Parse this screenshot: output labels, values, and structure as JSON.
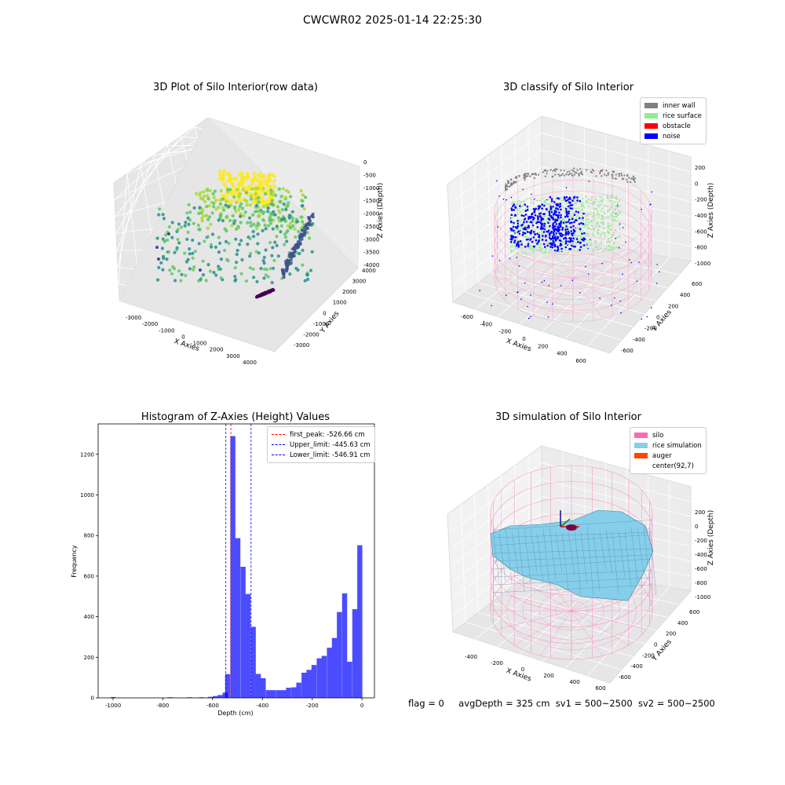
{
  "figure": {
    "suptitle": "CWCWR02 2025-01-14 22:25:30",
    "status": {
      "flag": "flag = 0",
      "avg_depth": "avgDepth = 325 cm",
      "sv1": "sv1 = 500~2500",
      "sv2": "sv2 = 500~2500"
    }
  },
  "chart_data": [
    {
      "type": "scatter",
      "title": "3D Plot of Silo Interior(row data)",
      "xlabel": "X Axies",
      "ylabel": "Y Axies",
      "zlabel": "Z Axies (Depth)",
      "x_ticks": [
        "-3000",
        "-2000",
        "-1000",
        "0",
        "1000",
        "2000",
        "3000",
        "4000"
      ],
      "y_ticks": [
        "-3000",
        "-2000",
        "-1000",
        "0",
        "1000",
        "2000",
        "3000",
        "4000"
      ],
      "z_ticks": [
        "-4000",
        "-3500",
        "-3000",
        "-2500",
        "-2000",
        "-1500",
        "-1000",
        "-500",
        "0"
      ],
      "colormap": [
        "#440154",
        "#3b528b",
        "#21908d",
        "#5dc863",
        "#fde725"
      ]
    },
    {
      "type": "scatter",
      "title": "3D classify of Silo Interior",
      "xlabel": "X Axies",
      "ylabel": "Y Axies",
      "zlabel": "Z Axies (Depth)",
      "x_ticks": [
        "-600",
        "-400",
        "-200",
        "0",
        "200",
        "400",
        "600"
      ],
      "y_ticks": [
        "-600",
        "-400",
        "-200",
        "0",
        "200",
        "400",
        "600"
      ],
      "z_ticks": [
        "-1000",
        "-800",
        "-600",
        "-400",
        "-200",
        "0",
        "200"
      ],
      "legend": [
        {
          "label": "inner wall",
          "color": "#808080"
        },
        {
          "label": "rice surface",
          "color": "#90ee90"
        },
        {
          "label": "obstacle",
          "color": "#ff0000"
        },
        {
          "label": "noise",
          "color": "#0000ff"
        }
      ]
    },
    {
      "type": "bar",
      "title": "Histogram of Z-Axies (Height) Values",
      "xlabel": "Depth (cm)",
      "ylabel": "Frequency",
      "xlim": [
        -1060,
        50
      ],
      "ylim": [
        0,
        1350
      ],
      "x_ticks": [
        -1000,
        -800,
        -600,
        -400,
        -200,
        0
      ],
      "y_ticks": [
        0,
        200,
        400,
        600,
        800,
        1000,
        1200
      ],
      "bar_color": "#0000ff",
      "bin_width": 20.4,
      "bin_left_edges": [
        -1010,
        -779,
        -702,
        -656,
        -620,
        -600,
        -580,
        -560,
        -550,
        -529,
        -509,
        -488,
        -468,
        -447,
        -427,
        -407,
        -386,
        -366,
        -345,
        -325,
        -305,
        -284,
        -264,
        -243,
        -223,
        -203,
        -182,
        -162,
        -141,
        -121,
        -101,
        -80,
        -60,
        -39,
        -19
      ],
      "values": [
        4,
        3,
        3,
        3,
        5,
        9,
        14,
        26,
        117,
        1290,
        787,
        646,
        512,
        350,
        118,
        97,
        38,
        38,
        38,
        38,
        50,
        52,
        75,
        124,
        138,
        162,
        195,
        207,
        247,
        295,
        423,
        515,
        178,
        437,
        752
      ],
      "vlines": [
        {
          "label": "first_peak: -526.66 cm",
          "x": -526.66,
          "color": "#ff0000"
        },
        {
          "label": "Upper_limit: -445.63 cm",
          "x": -445.63,
          "color": "#0000ff"
        },
        {
          "label": "Lower_limit: -546.91 cm",
          "x": -546.91,
          "color": "#0000ff"
        }
      ]
    },
    {
      "type": "surface",
      "title": "3D simulation of Silo Interior",
      "xlabel": "X Axies",
      "ylabel": "Y Axies",
      "zlabel": "Z Axies (Depth)",
      "x_ticks": [
        "-400",
        "-200",
        "0",
        "200",
        "400",
        "600"
      ],
      "y_ticks": [
        "-600",
        "-400",
        "-200",
        "0",
        "200",
        "400",
        "600"
      ],
      "z_ticks": [
        "-1000",
        "-800",
        "-600",
        "-400",
        "-200",
        "0",
        "200"
      ],
      "legend": [
        {
          "label": "silo",
          "color": "#ff69b4"
        },
        {
          "label": "rice simulation",
          "color": "#87ceeb"
        },
        {
          "label": "auger",
          "color": "#ff4500"
        },
        {
          "label": "center(92,7)",
          "color": "#ffffff"
        }
      ]
    }
  ]
}
